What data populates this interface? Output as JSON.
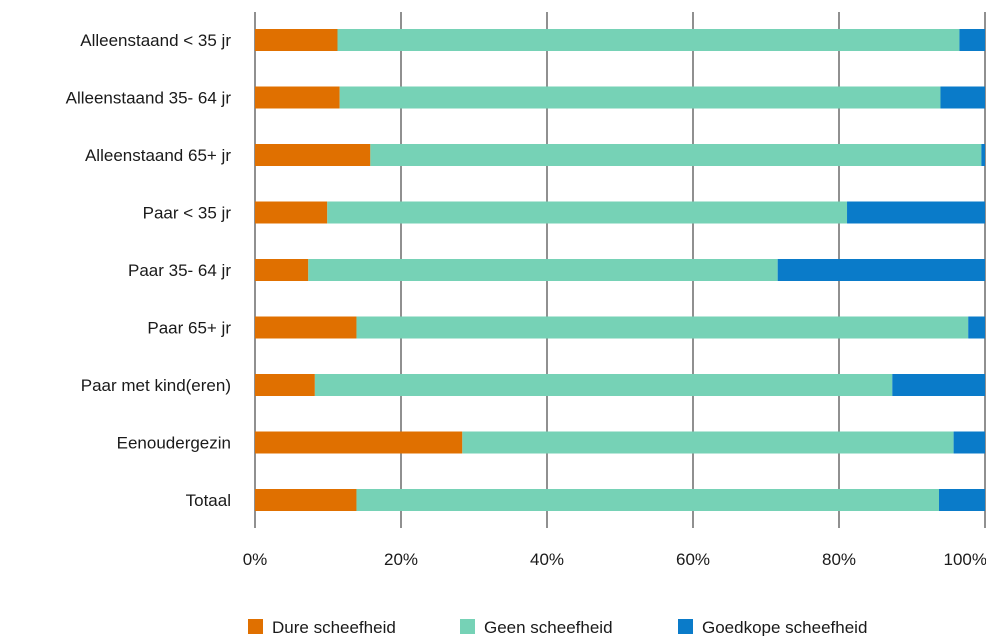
{
  "chart_data": {
    "type": "bar",
    "orientation": "horizontal",
    "stacked": true,
    "categories": [
      "Alleenstaand < 35 jr",
      "Alleenstaand 35- 64 jr",
      "Alleenstaand 65+ jr",
      "Paar < 35 jr",
      "Paar 35- 64 jr",
      "Paar 65+ jr",
      "Paar met kind(eren)",
      "Eenoudergezin",
      "Totaal"
    ],
    "series": [
      {
        "name": "Dure scheefheid",
        "color": "#e07000",
        "values": [
          11.3,
          11.6,
          15.8,
          9.9,
          7.3,
          13.9,
          8.2,
          28.4,
          13.9
        ]
      },
      {
        "name": "Geen scheefheid",
        "color": "#76d2b6",
        "values": [
          85.2,
          82.3,
          83.7,
          71.2,
          64.3,
          83.8,
          79.1,
          67.3,
          79.8
        ]
      },
      {
        "name": "Goedkope scheefheid",
        "color": "#0a7bc9",
        "values": [
          3.5,
          6.1,
          0.5,
          18.9,
          28.4,
          2.3,
          12.7,
          4.3,
          6.3
        ]
      }
    ],
    "xticks": [
      "0%",
      "20%",
      "40%",
      "60%",
      "80%",
      "100%"
    ],
    "xlim": [
      0,
      100
    ],
    "grid": "vertical",
    "legend": "bottom"
  }
}
